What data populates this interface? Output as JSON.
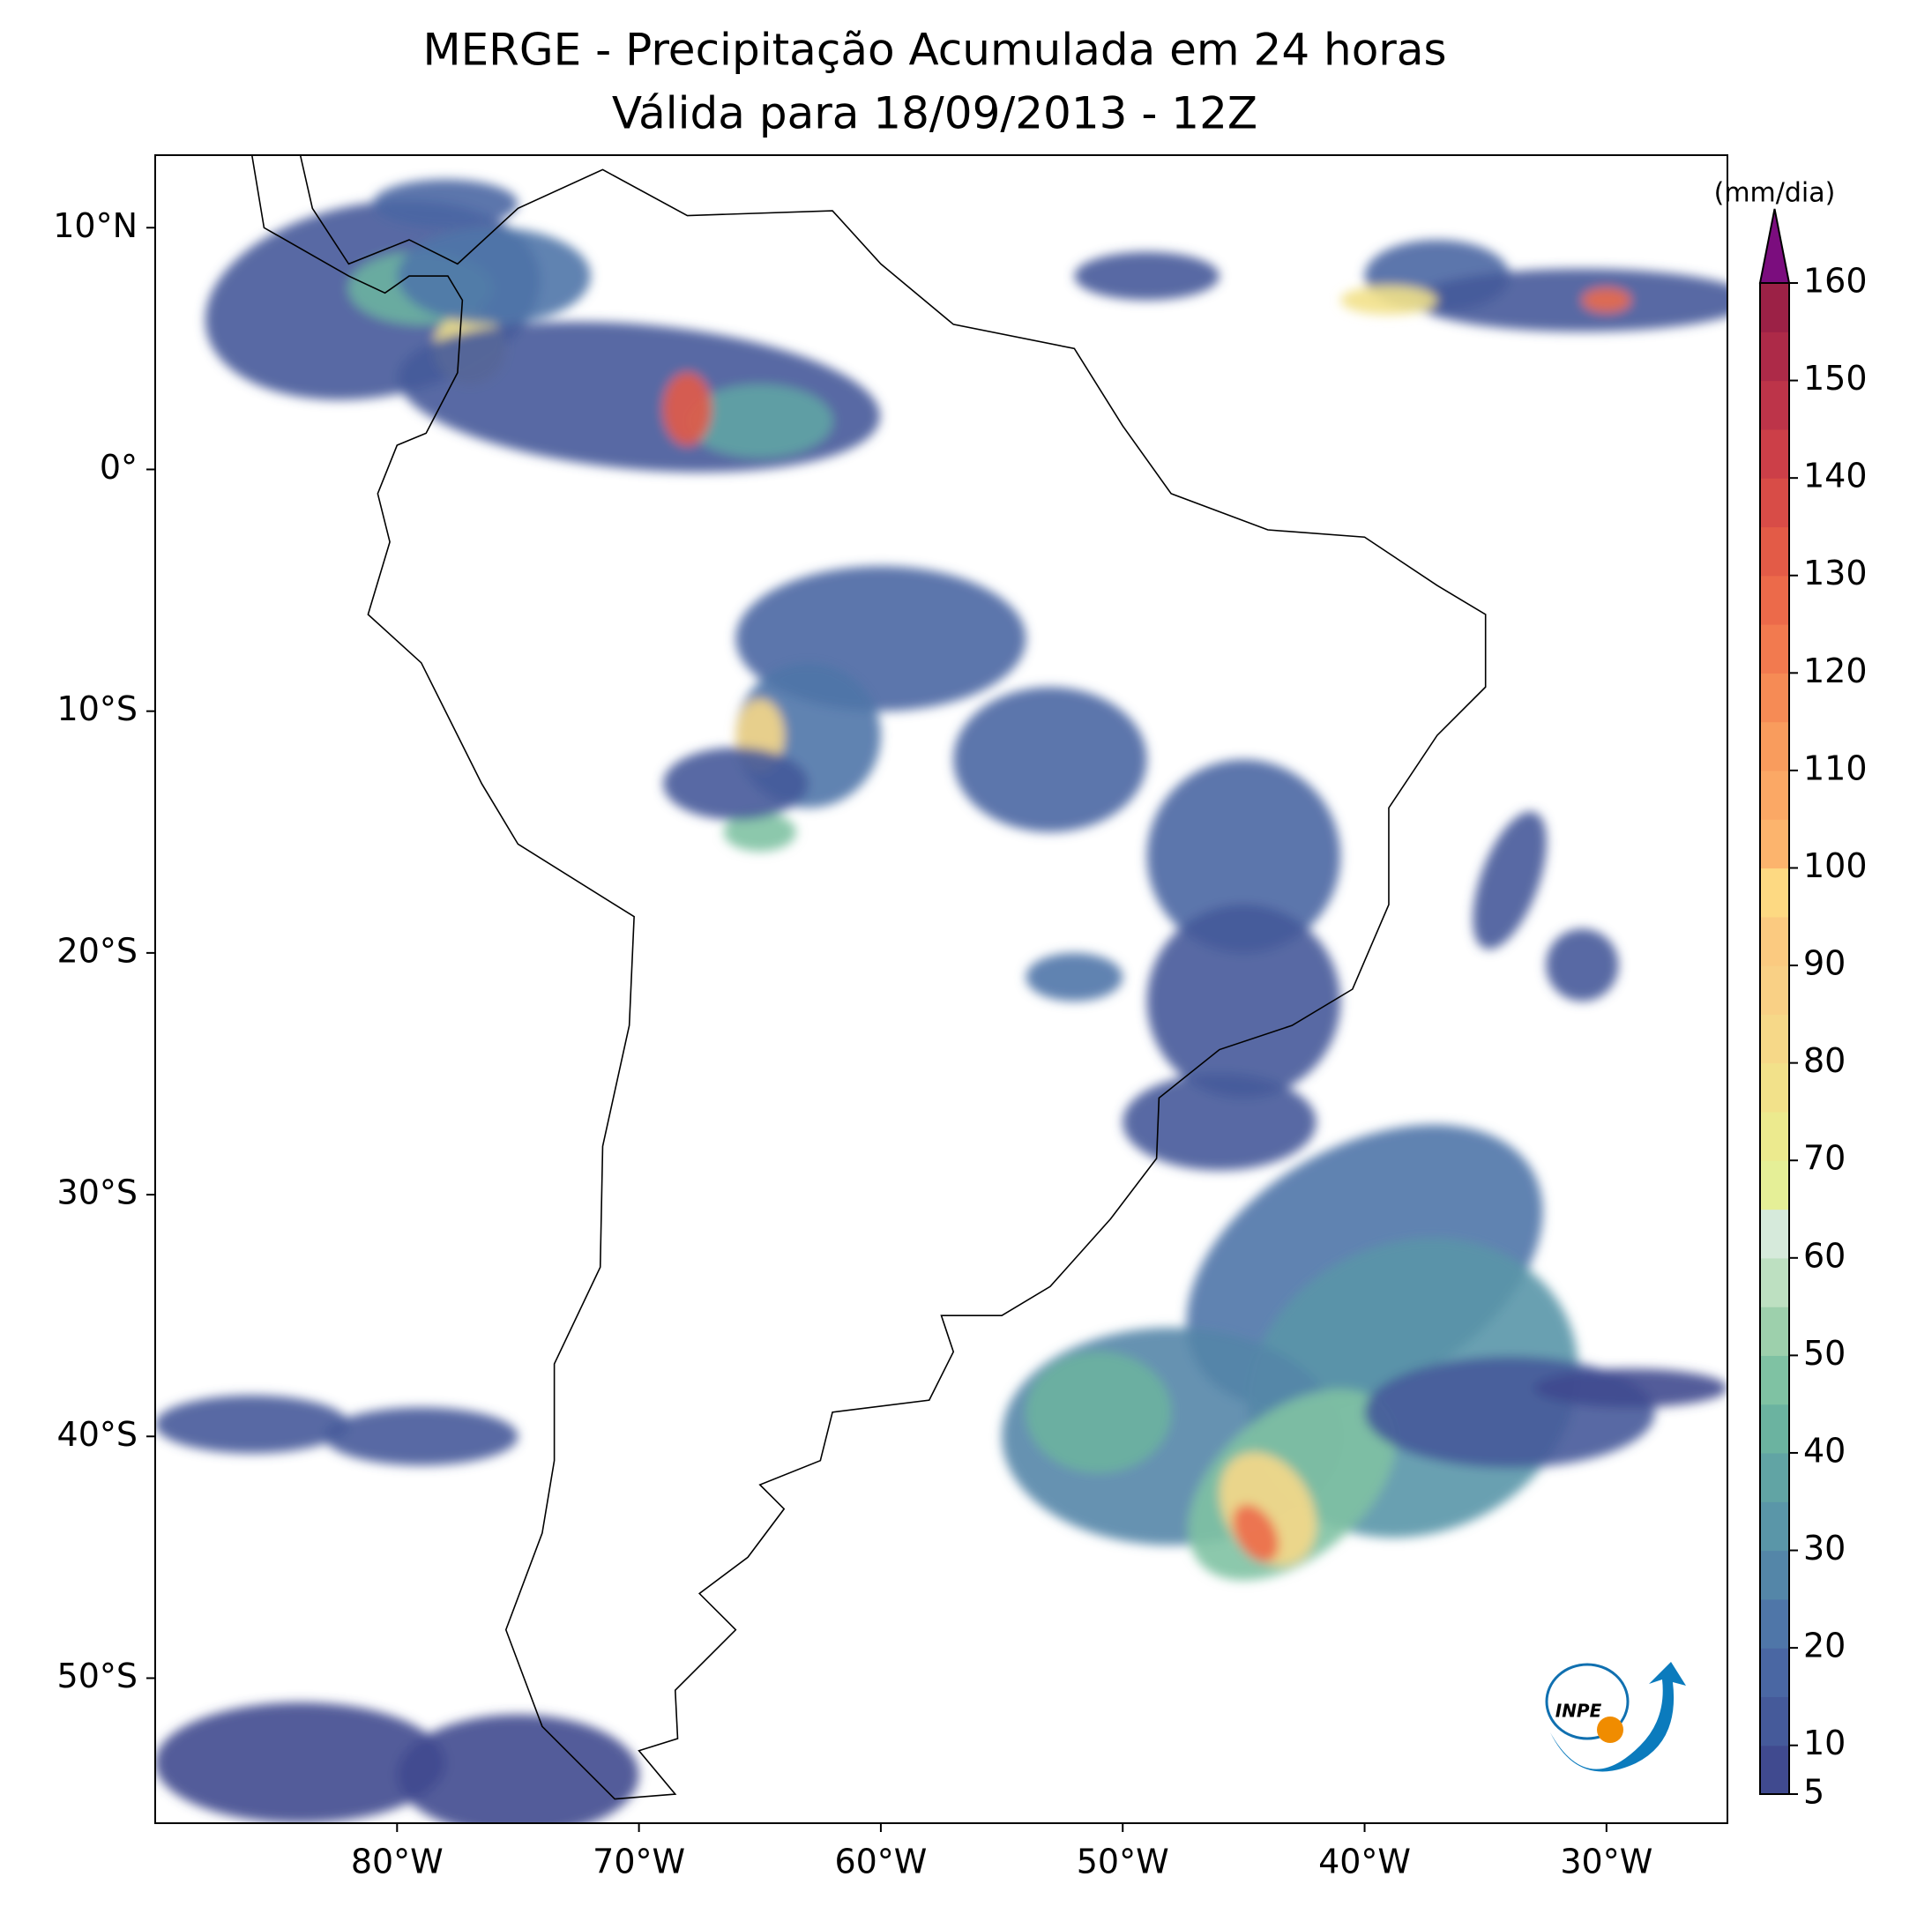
{
  "chart_data": {
    "type": "map",
    "title": "MERGE - Precipitação Acumulada em 24 horas",
    "subtitle": "Válida para 18/09/2013 - 12Z",
    "xlim": [
      -90,
      -25
    ],
    "ylim": [
      -56,
      13
    ],
    "xticks": [
      {
        "value": -80,
        "label": "80°W"
      },
      {
        "value": -70,
        "label": "70°W"
      },
      {
        "value": -60,
        "label": "60°W"
      },
      {
        "value": -50,
        "label": "50°W"
      },
      {
        "value": -40,
        "label": "40°W"
      },
      {
        "value": -30,
        "label": "30°W"
      }
    ],
    "yticks": [
      {
        "value": 10,
        "label": "10°N"
      },
      {
        "value": 0,
        "label": "0°"
      },
      {
        "value": -10,
        "label": "10°S"
      },
      {
        "value": -20,
        "label": "20°S"
      },
      {
        "value": -30,
        "label": "30°S"
      },
      {
        "value": -40,
        "label": "40°S"
      },
      {
        "value": -50,
        "label": "50°S"
      }
    ],
    "colorbar": {
      "label": "(mm/dia)",
      "lim": [
        5,
        160
      ],
      "ticks": [
        5,
        10,
        20,
        30,
        40,
        50,
        60,
        70,
        80,
        90,
        100,
        110,
        120,
        130,
        140,
        150,
        160
      ],
      "colors": [
        "#404a8f",
        "#455a9a",
        "#4a67a3",
        "#4f76a8",
        "#5486a8",
        "#5a96a8",
        "#61a4a4",
        "#6bb3a0",
        "#7fc2a3",
        "#9dd0ac",
        "#bde0c1",
        "#d6eadb",
        "#e5ef97",
        "#ecea8e",
        "#f2e18a",
        "#f6d888",
        "#f9d085",
        "#fbca80",
        "#fdd982",
        "#fcb46d",
        "#fba865",
        "#f99c5d",
        "#f68b55",
        "#f27a4f",
        "#ec6a4a",
        "#e35b47",
        "#d84c47",
        "#cc3f48",
        "#bd3449",
        "#ad2a48",
        "#9c2146"
      ],
      "extend_color": "#7b0d7e"
    },
    "logo_text": "INPE"
  }
}
